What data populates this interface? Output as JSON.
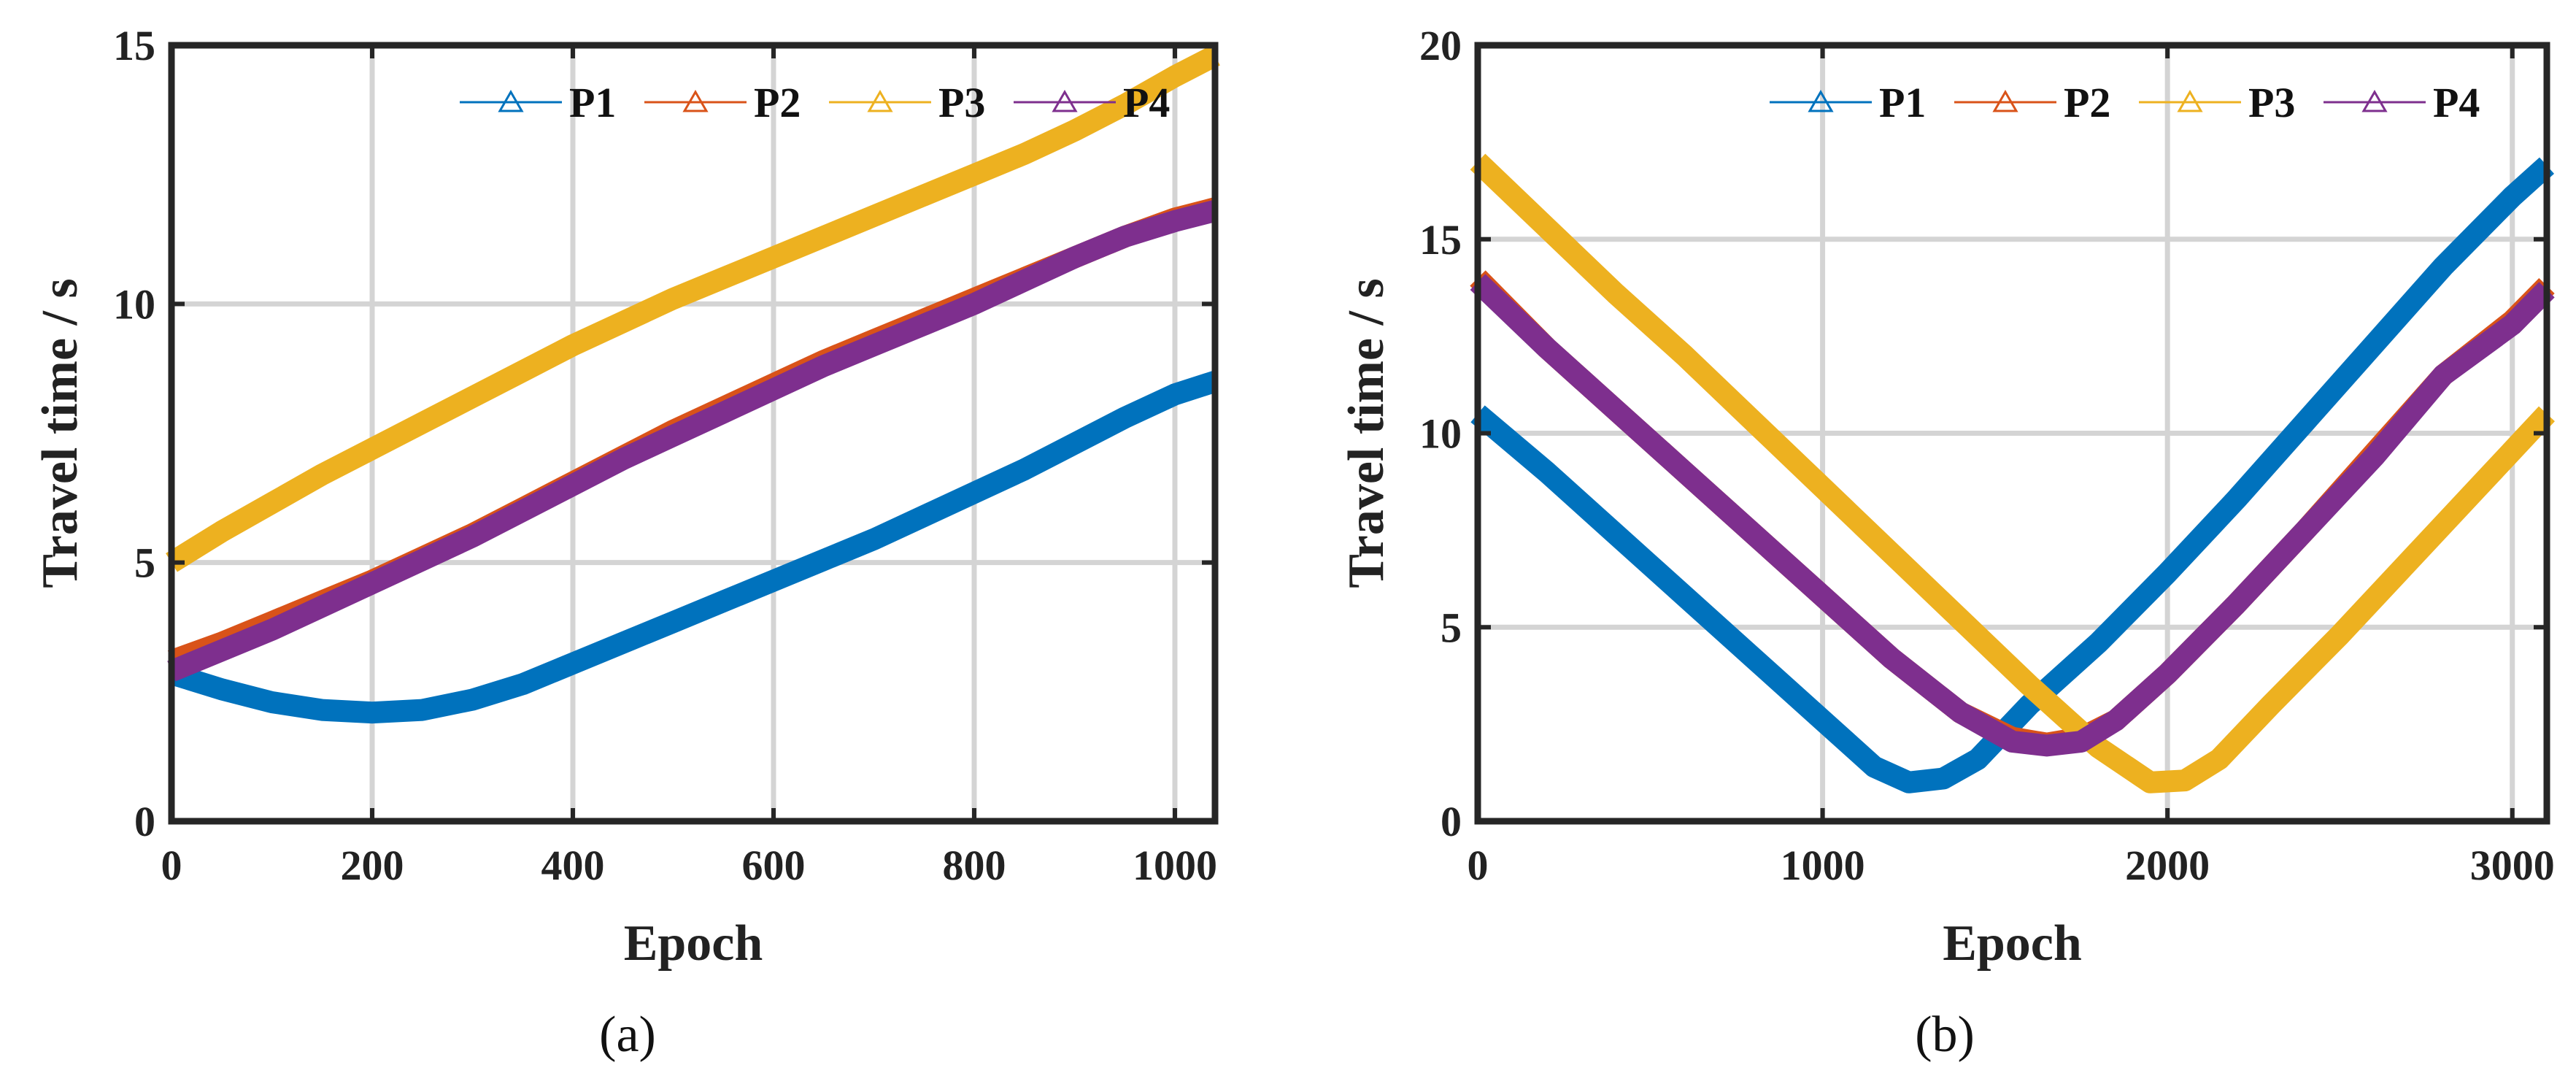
{
  "chart_data": [
    {
      "panel": "a",
      "caption": "(a)",
      "type": "line",
      "xlabel": "Epoch",
      "ylabel": "Travel time / s",
      "xlim": [
        0,
        1040
      ],
      "ylim": [
        0,
        15
      ],
      "xticks": [
        0,
        200,
        400,
        600,
        800,
        1000
      ],
      "yticks": [
        0,
        5,
        10,
        15
      ],
      "grid": true,
      "legend_position": "top-right",
      "series": [
        {
          "name": "P1",
          "color": "#0072BD",
          "x": [
            0,
            50,
            100,
            150,
            200,
            250,
            300,
            350,
            400,
            450,
            500,
            550,
            600,
            650,
            700,
            750,
            800,
            850,
            900,
            950,
            1000,
            1040
          ],
          "y": [
            2.85,
            2.55,
            2.3,
            2.15,
            2.1,
            2.15,
            2.35,
            2.65,
            3.05,
            3.45,
            3.85,
            4.25,
            4.65,
            5.05,
            5.45,
            5.9,
            6.35,
            6.8,
            7.3,
            7.8,
            8.25,
            8.5
          ]
        },
        {
          "name": "P2",
          "color": "#D95319",
          "x": [
            0,
            50,
            100,
            150,
            200,
            250,
            300,
            350,
            400,
            450,
            500,
            550,
            600,
            650,
            700,
            750,
            800,
            850,
            900,
            950,
            1000,
            1040
          ],
          "y": [
            3.1,
            3.45,
            3.85,
            4.25,
            4.65,
            5.1,
            5.55,
            6.05,
            6.55,
            7.05,
            7.55,
            8.0,
            8.45,
            8.9,
            9.3,
            9.7,
            10.1,
            10.5,
            10.9,
            11.3,
            11.65,
            11.85
          ]
        },
        {
          "name": "P3",
          "color": "#EDB120",
          "x": [
            0,
            50,
            100,
            150,
            200,
            250,
            300,
            350,
            400,
            450,
            500,
            550,
            600,
            650,
            700,
            750,
            800,
            850,
            900,
            950,
            1000,
            1040
          ],
          "y": [
            5.0,
            5.6,
            6.15,
            6.7,
            7.2,
            7.7,
            8.2,
            8.7,
            9.2,
            9.65,
            10.1,
            10.5,
            10.9,
            11.3,
            11.7,
            12.1,
            12.5,
            12.9,
            13.35,
            13.85,
            14.4,
            14.8
          ]
        },
        {
          "name": "P4",
          "color": "#7E2F8E",
          "x": [
            0,
            50,
            100,
            150,
            200,
            250,
            300,
            350,
            400,
            450,
            500,
            550,
            600,
            650,
            700,
            750,
            800,
            850,
            900,
            950,
            1000,
            1040
          ],
          "y": [
            2.9,
            3.3,
            3.7,
            4.15,
            4.6,
            5.05,
            5.5,
            6.0,
            6.5,
            7.0,
            7.45,
            7.9,
            8.35,
            8.8,
            9.2,
            9.6,
            10.0,
            10.45,
            10.9,
            11.3,
            11.6,
            11.8
          ]
        }
      ]
    },
    {
      "panel": "b",
      "caption": "(b)",
      "type": "line",
      "xlabel": "Epoch",
      "ylabel": "Travel time / s",
      "xlim": [
        0,
        3100
      ],
      "ylim": [
        0,
        20
      ],
      "xticks": [
        0,
        1000,
        2000,
        3000
      ],
      "yticks": [
        0,
        5,
        10,
        15,
        20
      ],
      "grid": true,
      "legend_position": "top-right",
      "series": [
        {
          "name": "P1",
          "color": "#0072BD",
          "x": [
            0,
            200,
            400,
            600,
            800,
            1000,
            1150,
            1250,
            1350,
            1450,
            1600,
            1800,
            2000,
            2200,
            2400,
            2600,
            2800,
            3000,
            3100
          ],
          "y": [
            10.5,
            9.0,
            7.4,
            5.8,
            4.2,
            2.6,
            1.4,
            1.0,
            1.1,
            1.6,
            3.0,
            4.6,
            6.4,
            8.3,
            10.3,
            12.3,
            14.3,
            16.1,
            16.9
          ]
        },
        {
          "name": "P2",
          "color": "#D95319",
          "x": [
            0,
            200,
            400,
            600,
            800,
            1000,
            1200,
            1400,
            1550,
            1650,
            1750,
            1850,
            2000,
            2200,
            2400,
            2600,
            2800,
            3000,
            3100
          ],
          "y": [
            14.0,
            12.2,
            10.6,
            9.0,
            7.4,
            5.8,
            4.2,
            2.8,
            2.15,
            2.0,
            2.15,
            2.6,
            3.8,
            5.6,
            7.5,
            9.5,
            11.5,
            12.9,
            13.8
          ]
        },
        {
          "name": "P3",
          "color": "#EDB120",
          "x": [
            0,
            200,
            400,
            600,
            800,
            1000,
            1200,
            1400,
            1600,
            1800,
            1950,
            2050,
            2150,
            2300,
            2500,
            2700,
            2900,
            3100
          ],
          "y": [
            17.0,
            15.3,
            13.6,
            12.0,
            10.3,
            8.6,
            6.9,
            5.2,
            3.5,
            1.9,
            1.0,
            1.05,
            1.6,
            3.0,
            4.8,
            6.7,
            8.6,
            10.5
          ]
        },
        {
          "name": "P4",
          "color": "#7E2F8E",
          "x": [
            0,
            200,
            400,
            600,
            800,
            1000,
            1200,
            1400,
            1550,
            1650,
            1750,
            1850,
            2000,
            2200,
            2400,
            2600,
            2800,
            3000,
            3100
          ],
          "y": [
            13.9,
            12.2,
            10.6,
            9.0,
            7.4,
            5.8,
            4.2,
            2.8,
            2.05,
            1.95,
            2.05,
            2.6,
            3.8,
            5.6,
            7.5,
            9.4,
            11.5,
            12.8,
            13.7
          ]
        }
      ]
    }
  ]
}
